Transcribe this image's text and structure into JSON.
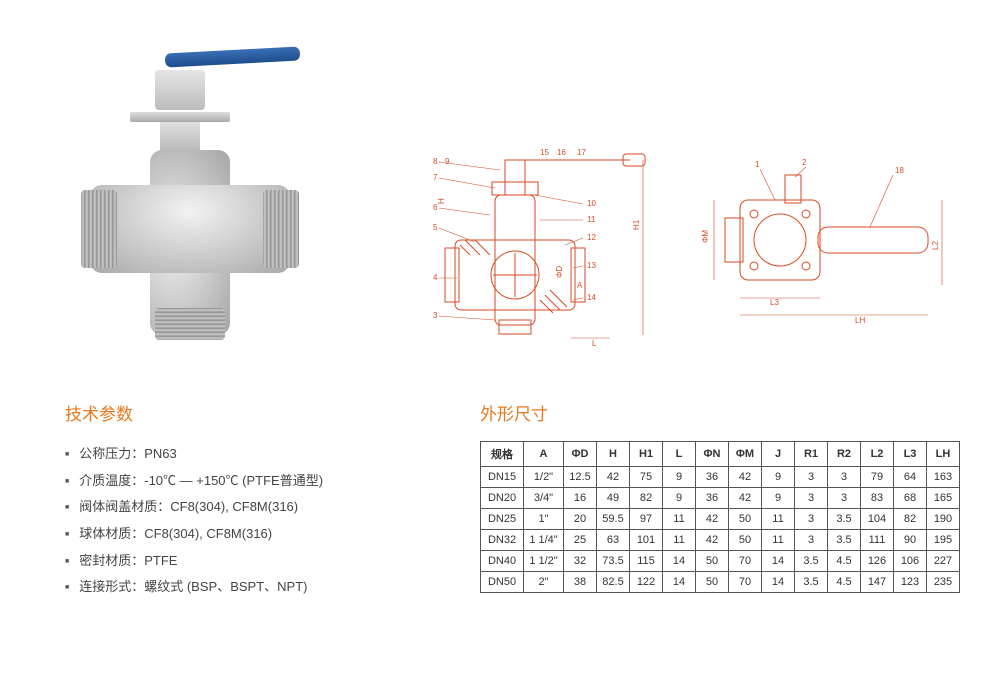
{
  "colors": {
    "accent": "#e8791c",
    "handle": "#2a5a9c",
    "line": "#d84a22",
    "text": "#333333",
    "border": "#555555"
  },
  "specs": {
    "title": "技术参数",
    "items": [
      "公称压力：PN63",
      "介质温度：-10℃ — +150℃ (PTFE普通型)",
      "阀体阀盖材质：CF8(304), CF8M(316)",
      "球体材质：CF8(304), CF8M(316)",
      "密封材质：PTFE",
      "连接形式：螺纹式 (BSP、BSPT、NPT)"
    ]
  },
  "dims": {
    "title": "外形尺寸",
    "columns": [
      "规格",
      "A",
      "ΦD",
      "H",
      "H1",
      "L",
      "ΦN",
      "ΦM",
      "J",
      "R1",
      "R2",
      "L2",
      "L3",
      "LH"
    ],
    "rows": [
      [
        "DN15",
        "1/2\"",
        "12.5",
        "42",
        "75",
        "9",
        "36",
        "42",
        "9",
        "3",
        "3",
        "79",
        "64",
        "163"
      ],
      [
        "DN20",
        "3/4\"",
        "16",
        "49",
        "82",
        "9",
        "36",
        "42",
        "9",
        "3",
        "3",
        "83",
        "68",
        "165"
      ],
      [
        "DN25",
        "1\"",
        "20",
        "59.5",
        "97",
        "11",
        "42",
        "50",
        "11",
        "3",
        "3.5",
        "104",
        "82",
        "190"
      ],
      [
        "DN32",
        "1 1/4\"",
        "25",
        "63",
        "101",
        "11",
        "42",
        "50",
        "11",
        "3",
        "3.5",
        "111",
        "90",
        "195"
      ],
      [
        "DN40",
        "1 1/2\"",
        "32",
        "73.5",
        "115",
        "14",
        "50",
        "70",
        "14",
        "3.5",
        "4.5",
        "126",
        "106",
        "227"
      ],
      [
        "DN50",
        "2\"",
        "38",
        "82.5",
        "122",
        "14",
        "50",
        "70",
        "14",
        "3.5",
        "4.5",
        "147",
        "123",
        "235"
      ]
    ]
  },
  "diagram_labels": {
    "left_numbers": [
      "3",
      "4",
      "5",
      "6",
      "7",
      "8",
      "9"
    ],
    "right_numbers": [
      "10",
      "11",
      "12",
      "13",
      "14",
      "15",
      "16",
      "17"
    ],
    "dims1": [
      "H",
      "ΦD",
      "A",
      "H1",
      "L"
    ],
    "dims2": [
      "ΦM",
      "L2",
      "L3",
      "LH",
      "1",
      "2",
      "18"
    ]
  }
}
